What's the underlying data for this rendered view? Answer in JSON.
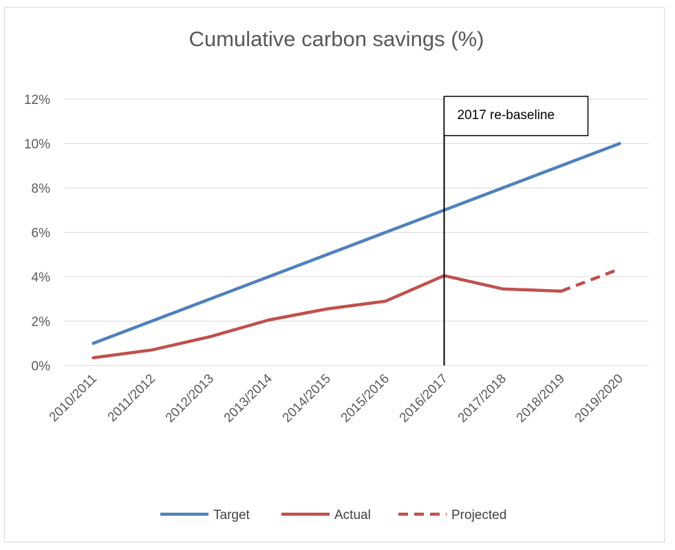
{
  "chart_data": {
    "type": "line",
    "title": "Cumulative carbon savings (%)",
    "xlabel": "",
    "ylabel": "",
    "categories": [
      "2010/2011",
      "2011/2012",
      "2012/2013",
      "2013/2014",
      "2014/2015",
      "2015/2016",
      "2016/2017",
      "2017/2018",
      "2018/2019",
      "2019/2020"
    ],
    "y_ticks": [
      "0%",
      "2%",
      "4%",
      "6%",
      "8%",
      "10%",
      "12%"
    ],
    "ylim": [
      0,
      12
    ],
    "grid": "horizontal",
    "legend_position": "bottom",
    "series": [
      {
        "name": "Target",
        "color": "#4f81bd",
        "style": "solid",
        "values": [
          1,
          2,
          3,
          4,
          5,
          6,
          7,
          8,
          9,
          10
        ]
      },
      {
        "name": "Actual",
        "color": "#c0504d",
        "style": "solid",
        "values": [
          0.35,
          0.7,
          1.3,
          2.05,
          2.55,
          2.9,
          4.05,
          3.45,
          3.35,
          null
        ]
      },
      {
        "name": "Projected",
        "color": "#c0504d",
        "style": "dashed",
        "values": [
          null,
          null,
          null,
          null,
          null,
          null,
          null,
          null,
          3.35,
          4.35
        ]
      }
    ],
    "annotations": [
      {
        "text": "2017 re-baseline",
        "category": "2016/2017",
        "type": "vertical-line"
      }
    ]
  }
}
